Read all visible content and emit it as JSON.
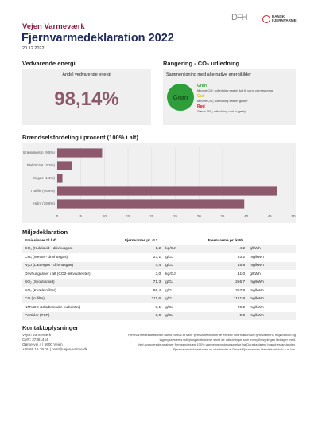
{
  "header": {
    "logo_left": "DFH",
    "logo_right": "DANSK FJERNVARME",
    "company": "Vejen Varmeværk",
    "title": "Fjernvarmedeklaration 2022",
    "date": "20.12.2022"
  },
  "renewable": {
    "heading": "Vedvarende energi",
    "box_title": "Andel vedvarende energi",
    "share": "98,14%"
  },
  "ranking": {
    "heading": "Rangering - CO₂ udledning",
    "box_title": "Sammenligning med alternative energikilder",
    "badge": "Grøn",
    "legend": [
      {
        "label": "Grøn",
        "color": "#2e9e3a",
        "text": "Mindre CO₂ udledning end et luft til vand varmepumpe"
      },
      {
        "label": "Gul",
        "color": "#e0c020",
        "text": "Mindre CO₂ udledning end et gasfyr"
      },
      {
        "label": "Rød",
        "color": "#c0262d",
        "text": "Større CO₂ udledning end et gasfyr"
      }
    ]
  },
  "chart_data": {
    "type": "bar",
    "orientation": "horizontal",
    "title": "Brændselsfordeling i procent (100% i alt)",
    "categories": [
      "Brændselsfri (9,5%)",
      "Elektricitet (3,2%)",
      "Biogas (1,1%)",
      "Træflis (46,6%)",
      "Halm (39,6%)"
    ],
    "values": [
      9.5,
      3.2,
      1.1,
      46.6,
      39.6
    ],
    "color": "#8c5a6c",
    "xlim": [
      0,
      50
    ],
    "xticks": [
      0,
      5,
      10,
      15,
      20,
      25,
      30,
      35,
      40,
      45,
      50
    ],
    "grid": true
  },
  "environment": {
    "heading": "Miljødeklaration",
    "columns": [
      "Emissioner til luft",
      "Fjernvarme pr. GJ",
      "Fjernvarme pr. kWh"
    ],
    "rows": [
      [
        "CO₂ (Kuldioxid - drivhusgas)",
        "1,2",
        "kg/GJ",
        "4,2",
        "g/kWh"
      ],
      [
        "CH₄ (Metan - drivhusgas)",
        "23,1",
        "g/GJ",
        "83,2",
        "mg/kWh"
      ],
      [
        "N₂O (Lattergas - drivhusgas)",
        "4,4",
        "g/GJ",
        "15,8",
        "mg/kWh"
      ],
      [
        "Drivhusgasser i alt (CO2-ækvivalenter)",
        "3,0",
        "kg/GJ",
        "11,0",
        "g/kWh"
      ],
      [
        "SO₂ (Svovldioxid)",
        "71,3",
        "g/GJ",
        "256,7",
        "mg/kWh"
      ],
      [
        "NOₓ (Kvælstofilter)",
        "99,4",
        "g/GJ",
        "357,8",
        "mg/kWh"
      ],
      [
        "CO (Kulilte)",
        "311,6",
        "g/GJ",
        "1121,8",
        "mg/kWh"
      ],
      [
        "NMVOC (Uforbrændte kulbrinter)",
        "8,1",
        "g/GJ",
        "29,2",
        "mg/kWh"
      ],
      [
        "Partikler (TSP)",
        "0,0",
        "g/GJ",
        "0,0",
        "mg/kWh"
      ]
    ]
  },
  "contact": {
    "heading": "Kontaktoplysninger",
    "lines": [
      "Vejen Varmeværk",
      "CVR: 37361414",
      "Gørkervej 4 | 6600 Vejen",
      "+45 69 15 39 00 | post@vejen-varme.dk"
    ],
    "note": [
      "Fjernvarmedeklarationen har til formål at sikre fjernvarmekunderne effektiv information om fjernvarmens miljøforhold og",
      "lagringssystems udlejningsforholdene samt de udledninger som energiforsyningen bidrager med.",
      "Ved avancerede analyser fremsendes en 100% varmemængdeopgørelse fra DanskeVarme branchestandarden.",
      "Fjernvarmedeklarationen er udarbejdet af Dansk Fjernvarmes Handelsselskab a.m.b.a."
    ]
  }
}
